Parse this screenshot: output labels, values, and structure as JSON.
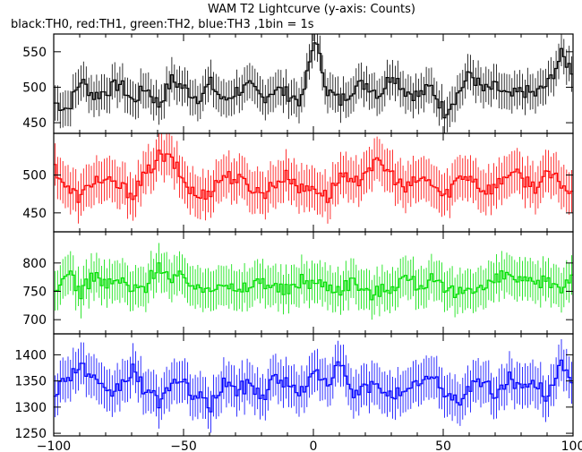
{
  "title": "WAM T2 Lightcurve (y-axis: Counts)",
  "subtitle": "black:TH0, red:TH1, green:TH2, blue:TH3 ,1bin = 1s",
  "colors": {
    "TH0": "#000000",
    "TH1": "#ff0000",
    "TH2": "#00e000",
    "TH3": "#0000ff",
    "frame": "#000000"
  },
  "chart_data": [
    {
      "type": "line",
      "series_name": "TH0",
      "x_range": [
        -100,
        100
      ],
      "ylim": [
        435,
        575
      ],
      "y_ticks": [
        450,
        500,
        550
      ],
      "x": [
        -100,
        -95,
        -90,
        -85,
        -80,
        -75,
        -70,
        -65,
        -60,
        -55,
        -50,
        -45,
        -40,
        -35,
        -30,
        -25,
        -20,
        -15,
        -10,
        -5,
        0,
        5,
        10,
        15,
        20,
        25,
        30,
        35,
        40,
        45,
        50,
        55,
        60,
        65,
        70,
        75,
        80,
        85,
        90,
        95,
        100
      ],
      "values": [
        478,
        470,
        510,
        488,
        495,
        505,
        480,
        500,
        475,
        510,
        498,
        485,
        505,
        480,
        495,
        500,
        485,
        498,
        490,
        480,
        570,
        495,
        480,
        500,
        505,
        490,
        520,
        495,
        488,
        500,
        465,
        490,
        520,
        495,
        500,
        485,
        495,
        490,
        505,
        545,
        520
      ],
      "error": 25
    },
    {
      "type": "line",
      "series_name": "TH1",
      "x_range": [
        -100,
        100
      ],
      "ylim": [
        425,
        555
      ],
      "y_ticks": [
        450,
        500
      ],
      "x": [
        -100,
        -95,
        -90,
        -85,
        -80,
        -75,
        -70,
        -65,
        -60,
        -55,
        -50,
        -45,
        -40,
        -35,
        -30,
        -25,
        -20,
        -15,
        -10,
        -5,
        0,
        5,
        10,
        15,
        20,
        25,
        30,
        35,
        40,
        45,
        50,
        55,
        60,
        65,
        70,
        75,
        80,
        85,
        90,
        95,
        100
      ],
      "values": [
        510,
        480,
        470,
        495,
        490,
        485,
        475,
        500,
        525,
        520,
        490,
        470,
        480,
        500,
        495,
        485,
        475,
        490,
        500,
        480,
        485,
        470,
        500,
        485,
        510,
        515,
        500,
        480,
        495,
        490,
        470,
        495,
        500,
        480,
        485,
        505,
        495,
        485,
        500,
        490,
        470
      ],
      "error": 28
    },
    {
      "type": "line",
      "series_name": "TH2",
      "x_range": [
        -100,
        100
      ],
      "ylim": [
        675,
        855
      ],
      "y_ticks": [
        700,
        750,
        800
      ],
      "x": [
        -100,
        -95,
        -90,
        -85,
        -80,
        -75,
        -70,
        -65,
        -60,
        -55,
        -50,
        -45,
        -40,
        -35,
        -30,
        -25,
        -20,
        -15,
        -10,
        -5,
        0,
        5,
        10,
        15,
        20,
        25,
        30,
        35,
        40,
        45,
        50,
        55,
        60,
        65,
        70,
        75,
        80,
        85,
        90,
        95,
        100
      ],
      "values": [
        740,
        790,
        745,
        780,
        760,
        770,
        750,
        760,
        800,
        765,
        780,
        750,
        760,
        770,
        745,
        760,
        770,
        755,
        750,
        770,
        765,
        760,
        755,
        770,
        745,
        750,
        760,
        775,
        760,
        770,
        750,
        745,
        760,
        755,
        770,
        780,
        765,
        760,
        770,
        755,
        790
      ],
      "error": 35
    },
    {
      "type": "line",
      "series_name": "TH3",
      "x_range": [
        -100,
        100
      ],
      "ylim": [
        1245,
        1440
      ],
      "y_ticks": [
        1250,
        1300,
        1350,
        1400
      ],
      "x": [
        -100,
        -95,
        -90,
        -85,
        -80,
        -75,
        -70,
        -65,
        -60,
        -55,
        -50,
        -45,
        -40,
        -35,
        -30,
        -25,
        -20,
        -15,
        -10,
        -5,
        0,
        5,
        10,
        15,
        20,
        25,
        30,
        35,
        40,
        45,
        50,
        55,
        60,
        65,
        70,
        75,
        80,
        85,
        90,
        95,
        100
      ],
      "values": [
        1330,
        1360,
        1380,
        1350,
        1320,
        1340,
        1370,
        1330,
        1310,
        1350,
        1340,
        1320,
        1300,
        1350,
        1330,
        1345,
        1320,
        1360,
        1340,
        1330,
        1365,
        1350,
        1380,
        1320,
        1340,
        1335,
        1330,
        1320,
        1350,
        1355,
        1330,
        1310,
        1340,
        1350,
        1320,
        1360,
        1330,
        1345,
        1320,
        1395,
        1320
      ],
      "error": 40
    }
  ],
  "x_axis": {
    "ticks": [
      -100,
      -50,
      0,
      50,
      100
    ],
    "tick_labels": [
      "−100",
      "−50",
      "0",
      "50",
      "100"
    ]
  }
}
